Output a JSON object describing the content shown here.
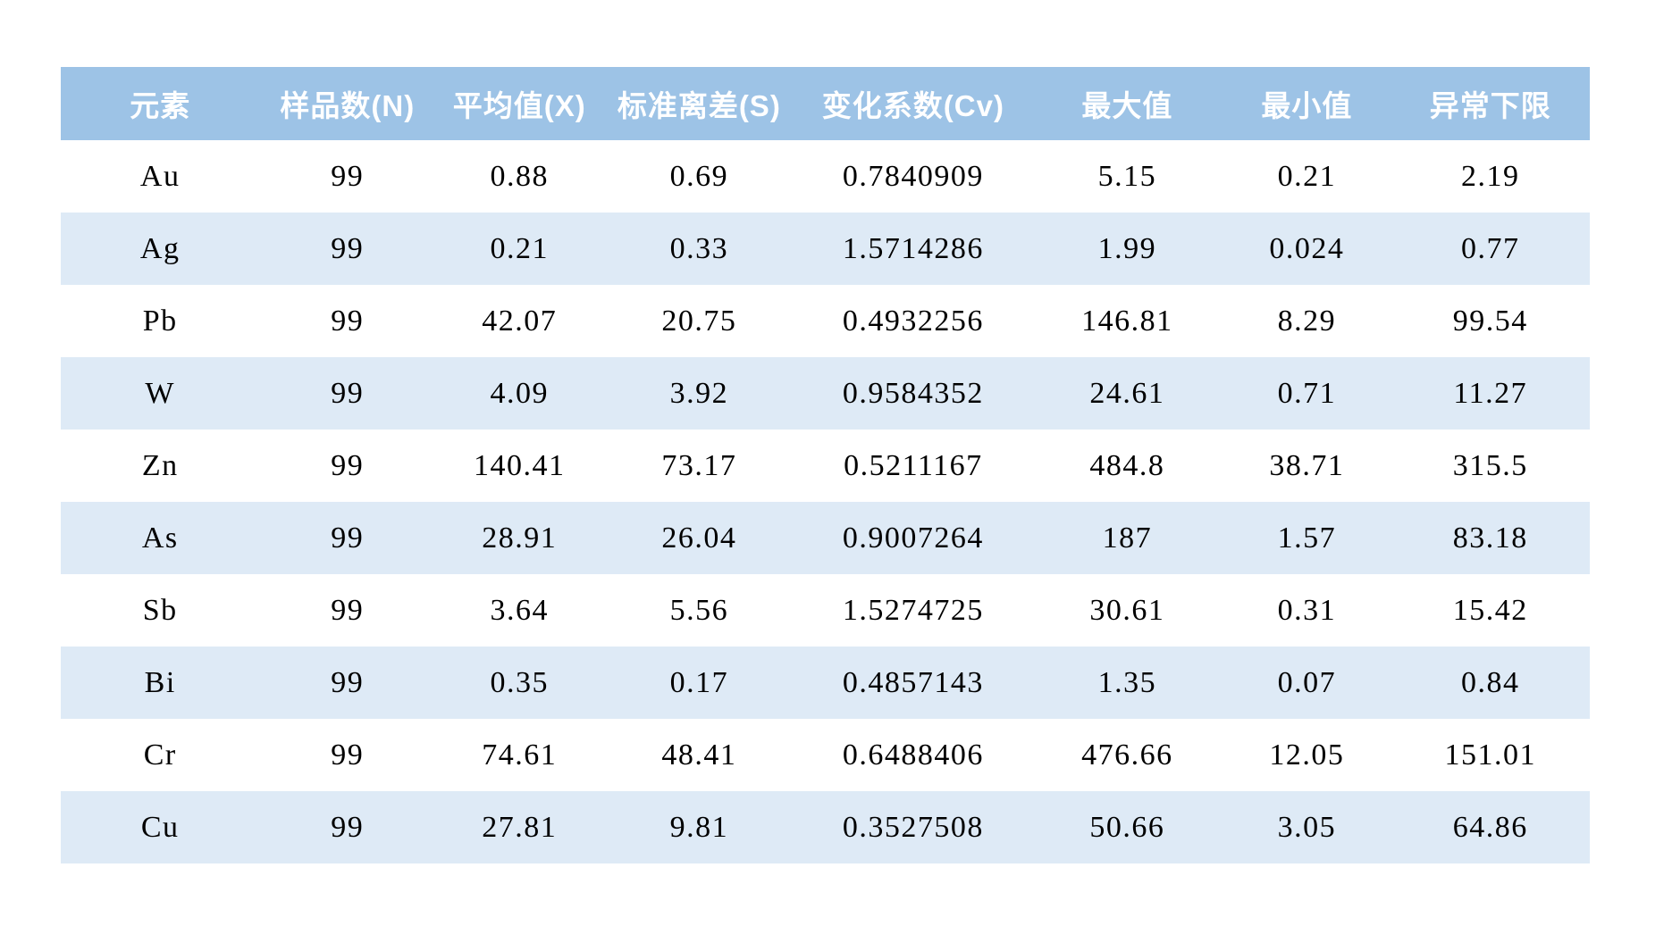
{
  "table": {
    "headers": [
      "元素",
      "样品数(N)",
      "平均值(X)",
      "标准离差(S)",
      "变化系数(Cv)",
      "最大值",
      "最小值",
      "异常下限"
    ],
    "rows": [
      {
        "element": "Au",
        "n": "99",
        "mean": "0.88",
        "sd": "0.69",
        "cv": "0.7840909",
        "max": "5.15",
        "min": "0.21",
        "anomaly": "2.19"
      },
      {
        "element": "Ag",
        "n": "99",
        "mean": "0.21",
        "sd": "0.33",
        "cv": "1.5714286",
        "max": "1.99",
        "min": "0.024",
        "anomaly": "0.77"
      },
      {
        "element": "Pb",
        "n": "99",
        "mean": "42.07",
        "sd": "20.75",
        "cv": "0.4932256",
        "max": "146.81",
        "min": "8.29",
        "anomaly": "99.54"
      },
      {
        "element": "W",
        "n": "99",
        "mean": "4.09",
        "sd": "3.92",
        "cv": "0.9584352",
        "max": "24.61",
        "min": "0.71",
        "anomaly": "11.27"
      },
      {
        "element": "Zn",
        "n": "99",
        "mean": "140.41",
        "sd": "73.17",
        "cv": "0.5211167",
        "max": "484.8",
        "min": "38.71",
        "anomaly": "315.5"
      },
      {
        "element": "As",
        "n": "99",
        "mean": "28.91",
        "sd": "26.04",
        "cv": "0.9007264",
        "max": "187",
        "min": "1.57",
        "anomaly": "83.18"
      },
      {
        "element": "Sb",
        "n": "99",
        "mean": "3.64",
        "sd": "5.56",
        "cv": "1.5274725",
        "max": "30.61",
        "min": "0.31",
        "anomaly": "15.42"
      },
      {
        "element": "Bi",
        "n": "99",
        "mean": "0.35",
        "sd": "0.17",
        "cv": "0.4857143",
        "max": "1.35",
        "min": "0.07",
        "anomaly": "0.84"
      },
      {
        "element": "Cr",
        "n": "99",
        "mean": "74.61",
        "sd": "48.41",
        "cv": "0.6488406",
        "max": "476.66",
        "min": "12.05",
        "anomaly": "151.01"
      },
      {
        "element": "Cu",
        "n": "99",
        "mean": "27.81",
        "sd": "9.81",
        "cv": "0.3527508",
        "max": "50.66",
        "min": "3.05",
        "anomaly": "64.86"
      }
    ]
  },
  "colors": {
    "header_bg": "#9dc3e6",
    "header_text": "#ffffff",
    "row_bg": "#ffffff",
    "row_alt_bg": "#deeaf6",
    "body_text": "#000000",
    "page_bg": "#ffffff"
  }
}
